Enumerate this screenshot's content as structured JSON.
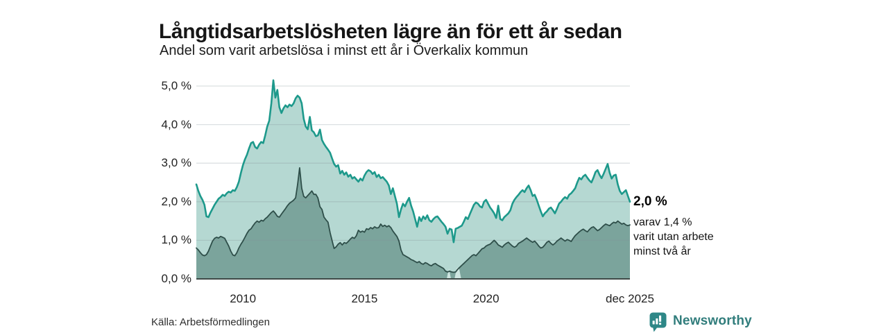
{
  "chart_data": {
    "type": "area",
    "title": "Långtidsarbetslösheten lägre än för ett år sedan",
    "subtitle": "Andel som varit arbetslösa i minst ett år i Överkalix kommun",
    "x_start": 2008.0833,
    "x_step": 0.0833333,
    "x_range": [
      2008.0833,
      2025.9167
    ],
    "ylim": [
      0,
      5
    ],
    "grid": true,
    "y_ticks": [
      {
        "v": 0,
        "label": "0,0 %"
      },
      {
        "v": 1,
        "label": "1,0 %"
      },
      {
        "v": 2,
        "label": "2,0 %"
      },
      {
        "v": 3,
        "label": "3,0 %"
      },
      {
        "v": 4,
        "label": "4,0 %"
      },
      {
        "v": 5,
        "label": "5,0 %"
      }
    ],
    "x_ticks": [
      {
        "t": 2010.0,
        "label": "2010"
      },
      {
        "t": 2015.0,
        "label": "2015"
      },
      {
        "t": 2020.0,
        "label": "2020"
      },
      {
        "t": 2025.9167,
        "label": "dec 2025"
      }
    ],
    "series": [
      {
        "name": "Arbetslösa minst ett år",
        "end_value": "2,0 %",
        "line_color": "#1d998b",
        "fill_color": "#b5d8d2",
        "line_width": 2.6,
        "values": [
          2.45,
          2.28,
          2.15,
          2.05,
          1.92,
          1.62,
          1.6,
          1.72,
          1.82,
          1.92,
          2.0,
          2.08,
          2.12,
          2.18,
          2.15,
          2.22,
          2.26,
          2.24,
          2.3,
          2.28,
          2.38,
          2.52,
          2.75,
          2.95,
          3.1,
          3.22,
          3.38,
          3.52,
          3.55,
          3.42,
          3.38,
          3.48,
          3.55,
          3.52,
          3.72,
          3.95,
          4.1,
          4.55,
          5.15,
          4.7,
          4.9,
          4.45,
          4.3,
          4.42,
          4.5,
          4.45,
          4.52,
          4.48,
          4.55,
          4.68,
          4.75,
          4.7,
          4.55,
          4.15,
          3.95,
          3.88,
          4.2,
          3.85,
          3.8,
          3.7,
          3.72,
          3.87,
          3.6,
          3.5,
          3.42,
          3.35,
          3.27,
          3.12,
          2.98,
          2.91,
          2.95,
          2.73,
          2.8,
          2.7,
          2.76,
          2.65,
          2.7,
          2.6,
          2.64,
          2.58,
          2.52,
          2.6,
          2.55,
          2.68,
          2.77,
          2.82,
          2.79,
          2.72,
          2.77,
          2.64,
          2.7,
          2.61,
          2.64,
          2.58,
          2.52,
          2.42,
          2.2,
          2.35,
          2.15,
          1.95,
          1.6,
          1.8,
          1.95,
          1.88,
          2.0,
          2.1,
          1.9,
          1.75,
          1.55,
          1.35,
          1.6,
          1.5,
          1.62,
          1.55,
          1.65,
          1.52,
          1.48,
          1.55,
          1.6,
          1.62,
          1.55,
          1.48,
          1.42,
          1.35,
          1.17,
          1.3,
          1.28,
          0.95,
          1.3,
          1.32,
          1.35,
          1.38,
          1.48,
          1.6,
          1.55,
          1.68,
          1.8,
          1.92,
          1.98,
          1.95,
          1.88,
          1.85,
          2.0,
          2.05,
          1.95,
          1.85,
          1.78,
          1.7,
          1.58,
          1.9,
          1.55,
          1.52,
          1.6,
          1.65,
          1.7,
          1.78,
          1.95,
          2.05,
          2.12,
          2.18,
          2.25,
          2.3,
          2.25,
          2.35,
          2.42,
          2.3,
          2.15,
          2.18,
          2.05,
          1.9,
          1.75,
          1.62,
          1.7,
          1.75,
          1.82,
          1.85,
          1.78,
          1.7,
          1.82,
          1.95,
          2.0,
          2.07,
          2.12,
          2.08,
          2.18,
          2.22,
          2.28,
          2.35,
          2.5,
          2.62,
          2.58,
          2.66,
          2.7,
          2.62,
          2.55,
          2.5,
          2.62,
          2.77,
          2.82,
          2.7,
          2.61,
          2.72,
          2.85,
          2.98,
          2.75,
          2.6,
          2.68,
          2.7,
          2.45,
          2.28,
          2.2,
          2.25,
          2.3,
          2.15,
          2.0
        ]
      },
      {
        "name": "Arbetslösa minst två år",
        "end_value": "1,4 %",
        "line_color": "#2e4e49",
        "fill_color": "#7ba49c",
        "line_width": 1.8,
        "values": [
          0.8,
          0.75,
          0.68,
          0.62,
          0.6,
          0.63,
          0.72,
          0.85,
          0.98,
          1.05,
          1.08,
          1.06,
          1.1,
          1.08,
          1.05,
          0.95,
          0.85,
          0.72,
          0.62,
          0.6,
          0.68,
          0.8,
          0.9,
          0.98,
          1.08,
          1.18,
          1.26,
          1.3,
          1.38,
          1.45,
          1.5,
          1.47,
          1.52,
          1.5,
          1.56,
          1.6,
          1.66,
          1.72,
          1.76,
          1.7,
          1.62,
          1.6,
          1.68,
          1.75,
          1.82,
          1.9,
          1.96,
          2.0,
          2.04,
          2.1,
          2.45,
          2.88,
          2.35,
          2.14,
          2.1,
          2.16,
          2.22,
          2.28,
          2.19,
          2.19,
          2.1,
          1.87,
          1.8,
          1.6,
          1.53,
          1.47,
          1.2,
          0.99,
          0.79,
          0.83,
          0.9,
          0.94,
          0.88,
          0.94,
          0.92,
          0.97,
          1.03,
          1.08,
          1.05,
          1.12,
          1.26,
          1.21,
          1.24,
          1.21,
          1.3,
          1.28,
          1.33,
          1.3,
          1.35,
          1.32,
          1.33,
          1.42,
          1.36,
          1.39,
          1.35,
          1.38,
          1.33,
          1.24,
          1.17,
          1.1,
          0.98,
          0.75,
          0.63,
          0.6,
          0.57,
          0.54,
          0.5,
          0.48,
          0.45,
          0.42,
          0.45,
          0.4,
          0.38,
          0.42,
          0.4,
          0.36,
          0.34,
          0.38,
          0.4,
          0.36,
          0.33,
          0.3,
          0.27,
          0.2,
          0.18,
          0.2,
          0.18,
          0.17,
          0.18,
          0.25,
          0.3,
          0.35,
          0.4,
          0.45,
          0.5,
          0.55,
          0.6,
          0.63,
          0.6,
          0.66,
          0.72,
          0.78,
          0.8,
          0.85,
          0.88,
          0.9,
          0.95,
          1.0,
          0.95,
          0.88,
          0.85,
          0.82,
          0.88,
          0.92,
          0.95,
          0.9,
          0.85,
          0.82,
          0.85,
          0.92,
          0.95,
          0.98,
          1.02,
          1.06,
          1.02,
          0.98,
          0.95,
          0.98,
          0.92,
          0.85,
          0.8,
          0.82,
          0.88,
          0.95,
          0.98,
          0.92,
          0.88,
          0.92,
          0.98,
          1.02,
          1.06,
          1.02,
          0.98,
          1.02,
          1.0,
          0.97,
          1.05,
          1.12,
          1.17,
          1.22,
          1.26,
          1.29,
          1.25,
          1.22,
          1.28,
          1.33,
          1.35,
          1.3,
          1.25,
          1.28,
          1.33,
          1.38,
          1.42,
          1.4,
          1.38,
          1.43,
          1.47,
          1.45,
          1.5,
          1.46,
          1.42,
          1.44,
          1.4,
          1.38,
          1.4
        ]
      }
    ],
    "data_gaps": [
      {
        "from": 2018.36,
        "to": 2018.58
      },
      {
        "from": 2018.68,
        "to": 2019.0
      }
    ],
    "colors": {
      "grid": "#828e96",
      "axis_line": "#3f4a47",
      "gap_patch": "#cfe6e1"
    }
  },
  "annotation": {
    "value_label": "2,0 %",
    "note_lines": [
      "varav 1,4 %",
      "varit utan arbete",
      "minst två år"
    ]
  },
  "source": {
    "label": "Källa: Arbetsförmedlingen"
  },
  "logo": {
    "text": "Newsworthy",
    "icon_color": "#2e8787",
    "text_color": "#317d7c"
  }
}
